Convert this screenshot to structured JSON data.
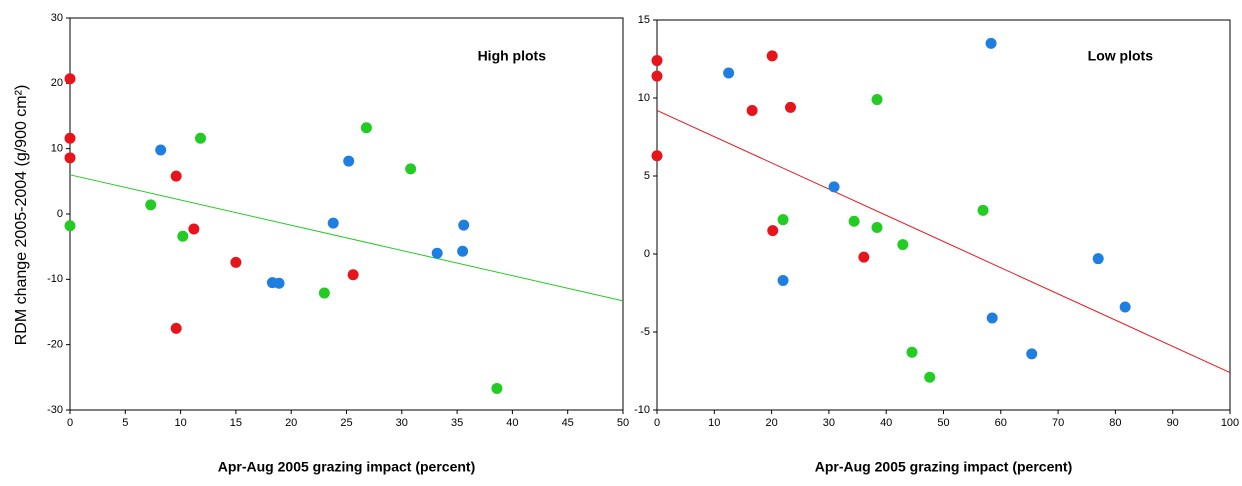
{
  "chart_data": [
    {
      "type": "scatter",
      "annotation": "High plots",
      "y_label": "RDM change 2005-2004 (g/900 cm²)",
      "x_label": "Apr-Aug 2005 grazing impact (percent)",
      "xlim": [
        0,
        50
      ],
      "xticks": [
        0,
        5,
        10,
        15,
        20,
        25,
        30,
        35,
        40,
        45,
        50
      ],
      "ylim": [
        -30,
        30
      ],
      "yticks": [
        -30,
        -20,
        -10,
        0,
        10,
        20,
        30
      ],
      "series": [
        {
          "color": "#e8141c",
          "x": [
            0,
            0,
            0,
            9.6,
            11.2,
            15.0,
            25.6,
            9.6
          ],
          "values": [
            20.7,
            11.6,
            8.6,
            5.8,
            -2.3,
            -7.4,
            -9.3,
            -17.5
          ]
        },
        {
          "color": "#1e7fe0",
          "x": [
            8.2,
            23.8,
            25.2,
            18.3,
            18.9,
            33.2,
            35.5,
            35.6
          ],
          "values": [
            9.8,
            -1.4,
            8.1,
            -10.5,
            -10.6,
            -6.0,
            -5.7,
            -1.7
          ]
        },
        {
          "color": "#22cc22",
          "x": [
            0,
            7.3,
            10.2,
            11.8,
            23.0,
            26.8,
            30.8,
            38.6
          ],
          "values": [
            -1.8,
            1.4,
            -3.4,
            11.6,
            -12.1,
            13.2,
            6.9,
            -26.7
          ]
        }
      ],
      "trendline": {
        "color": "#22cc22",
        "x": [
          0,
          50
        ],
        "values": [
          6.0,
          -13.3
        ]
      }
    },
    {
      "type": "scatter",
      "annotation": "Low plots",
      "x_label": "Apr-Aug 2005 grazing impact (percent)",
      "xlim": [
        0,
        100
      ],
      "xticks": [
        0,
        10,
        20,
        30,
        40,
        50,
        60,
        70,
        80,
        90,
        100
      ],
      "ylim": [
        -10,
        15
      ],
      "yticks": [
        -10,
        -5,
        0,
        5,
        10,
        15
      ],
      "series": [
        {
          "color": "#e8141c",
          "x": [
            0,
            0,
            0,
            16.6,
            20.1,
            23.3,
            20.2,
            36.1
          ],
          "values": [
            12.4,
            11.4,
            6.3,
            9.2,
            12.7,
            9.4,
            1.5,
            -0.2
          ]
        },
        {
          "color": "#1e7fe0",
          "x": [
            12.5,
            22.0,
            30.9,
            58.3,
            58.5,
            65.4,
            77.0,
            81.7
          ],
          "values": [
            11.6,
            -1.7,
            4.3,
            13.5,
            -4.1,
            -6.4,
            -0.3,
            -3.4
          ]
        },
        {
          "color": "#22cc22",
          "x": [
            22.0,
            34.4,
            38.4,
            38.4,
            42.9,
            44.5,
            47.6,
            56.9
          ],
          "values": [
            2.2,
            2.1,
            9.9,
            1.7,
            0.6,
            -6.3,
            -7.9,
            2.8
          ]
        }
      ],
      "trendline": {
        "color": "#e8141c",
        "x": [
          0,
          100
        ],
        "values": [
          9.2,
          -7.6
        ]
      }
    }
  ]
}
